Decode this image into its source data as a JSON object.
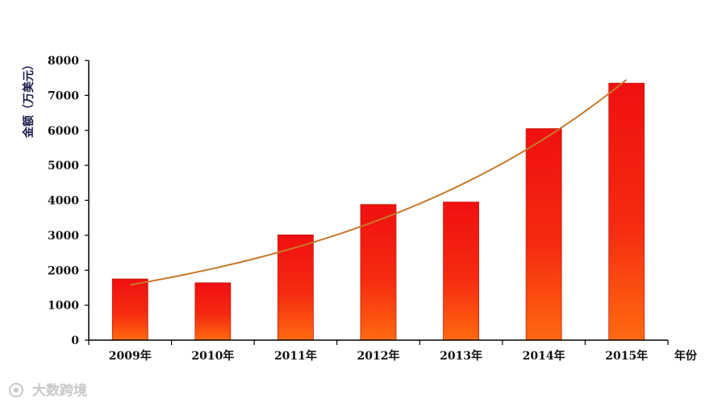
{
  "chart_data": {
    "type": "bar",
    "categories": [
      "2009年",
      "2010年",
      "2011年",
      "2012年",
      "2013年",
      "2014年",
      "2015年"
    ],
    "values": [
      1750,
      1640,
      3010,
      3880,
      3950,
      6050,
      7350
    ],
    "ylabel": "金额（万美元）",
    "xlabel": "年份",
    "ylim": [
      0,
      8000
    ],
    "yticks": [
      0,
      1000,
      2000,
      3000,
      4000,
      5000,
      6000,
      7000,
      8000
    ],
    "trendline": {
      "type": "exponential",
      "start": 1580,
      "end": 7450
    },
    "grid": false,
    "legend": "none",
    "colors": {
      "bar_top": "#f01010",
      "bar_bottom": "#ff6a10",
      "trend": "#c8782a",
      "axis": "#000000"
    }
  },
  "watermark": {
    "text": "大数跨境"
  }
}
